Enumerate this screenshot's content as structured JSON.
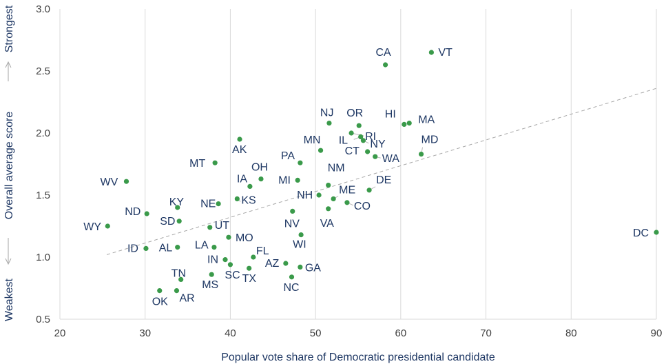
{
  "chart_data": {
    "type": "scatter",
    "xlabel": "Popular vote share of Democratic presidential candidate",
    "ylabel": "Overall average score",
    "ylabel_high": "Strongest",
    "ylabel_low": "Weakest",
    "xlim": [
      20,
      90
    ],
    "ylim": [
      0.5,
      3.0
    ],
    "xticks": [
      20,
      30,
      40,
      50,
      60,
      70,
      80,
      90
    ],
    "yticks": [
      "0.5",
      "1.0",
      "1.5",
      "2.0",
      "2.5",
      "3.0"
    ],
    "grid": "vertical",
    "point_color": "#3a9a4a",
    "label_color": "#1f3864",
    "trendline": {
      "style": "dashed",
      "x": [
        25.5,
        90
      ],
      "y": [
        1.02,
        2.36
      ]
    },
    "points": [
      {
        "label": "VT",
        "x": 63.6,
        "y": 2.65
      },
      {
        "label": "CA",
        "x": 58.2,
        "y": 2.55
      },
      {
        "label": "HI",
        "x": 60.4,
        "y": 2.07
      },
      {
        "label": "MA",
        "x": 61.0,
        "y": 2.08
      },
      {
        "label": "NJ",
        "x": 51.6,
        "y": 2.08
      },
      {
        "label": "OR",
        "x": 55.1,
        "y": 2.06
      },
      {
        "label": "RI",
        "x": 54.2,
        "y": 2.0
      },
      {
        "label": "IL",
        "x": 55.3,
        "y": 1.97
      },
      {
        "label": "NY",
        "x": 55.6,
        "y": 1.94
      },
      {
        "label": "CT",
        "x": 56.1,
        "y": 1.85
      },
      {
        "label": "WA",
        "x": 57.0,
        "y": 1.81
      },
      {
        "label": "MD",
        "x": 62.4,
        "y": 1.83
      },
      {
        "label": "MN",
        "x": 50.6,
        "y": 1.86
      },
      {
        "label": "AK",
        "x": 41.1,
        "y": 1.95
      },
      {
        "label": "PA",
        "x": 48.2,
        "y": 1.76
      },
      {
        "label": "MT",
        "x": 38.2,
        "y": 1.76
      },
      {
        "label": "OH",
        "x": 43.6,
        "y": 1.63
      },
      {
        "label": "IA",
        "x": 42.3,
        "y": 1.57
      },
      {
        "label": "MI",
        "x": 47.9,
        "y": 1.62
      },
      {
        "label": "NM",
        "x": 51.5,
        "y": 1.58
      },
      {
        "label": "DE",
        "x": 56.3,
        "y": 1.54
      },
      {
        "label": "NH",
        "x": 50.4,
        "y": 1.5
      },
      {
        "label": "ME",
        "x": 52.1,
        "y": 1.47
      },
      {
        "label": "CO",
        "x": 53.7,
        "y": 1.44
      },
      {
        "label": "VA",
        "x": 51.5,
        "y": 1.39
      },
      {
        "label": "NV",
        "x": 47.3,
        "y": 1.37
      },
      {
        "label": "WV",
        "x": 27.8,
        "y": 1.61
      },
      {
        "label": "KS",
        "x": 40.8,
        "y": 1.47
      },
      {
        "label": "NE",
        "x": 38.6,
        "y": 1.43
      },
      {
        "label": "KY",
        "x": 33.8,
        "y": 1.4
      },
      {
        "label": "ND",
        "x": 30.2,
        "y": 1.35
      },
      {
        "label": "SD",
        "x": 34.0,
        "y": 1.29
      },
      {
        "label": "UT",
        "x": 37.6,
        "y": 1.24
      },
      {
        "label": "WY",
        "x": 25.6,
        "y": 1.25
      },
      {
        "label": "DC",
        "x": 90.0,
        "y": 1.2
      },
      {
        "label": "MO",
        "x": 39.8,
        "y": 1.16
      },
      {
        "label": "WI",
        "x": 48.3,
        "y": 1.18
      },
      {
        "label": "LA",
        "x": 38.1,
        "y": 1.08
      },
      {
        "label": "AL",
        "x": 33.8,
        "y": 1.08
      },
      {
        "label": "ID",
        "x": 30.1,
        "y": 1.07
      },
      {
        "label": "FL",
        "x": 42.7,
        "y": 1.0
      },
      {
        "label": "IN",
        "x": 39.4,
        "y": 0.98
      },
      {
        "label": "SC",
        "x": 40.0,
        "y": 0.94
      },
      {
        "label": "AZ",
        "x": 46.5,
        "y": 0.95
      },
      {
        "label": "GA",
        "x": 48.2,
        "y": 0.92
      },
      {
        "label": "TX",
        "x": 42.2,
        "y": 0.91
      },
      {
        "label": "MS",
        "x": 37.8,
        "y": 0.86
      },
      {
        "label": "NC",
        "x": 47.2,
        "y": 0.84
      },
      {
        "label": "TN",
        "x": 34.2,
        "y": 0.82
      },
      {
        "label": "OK",
        "x": 31.7,
        "y": 0.73
      },
      {
        "label": "AR",
        "x": 33.7,
        "y": 0.73
      }
    ]
  }
}
